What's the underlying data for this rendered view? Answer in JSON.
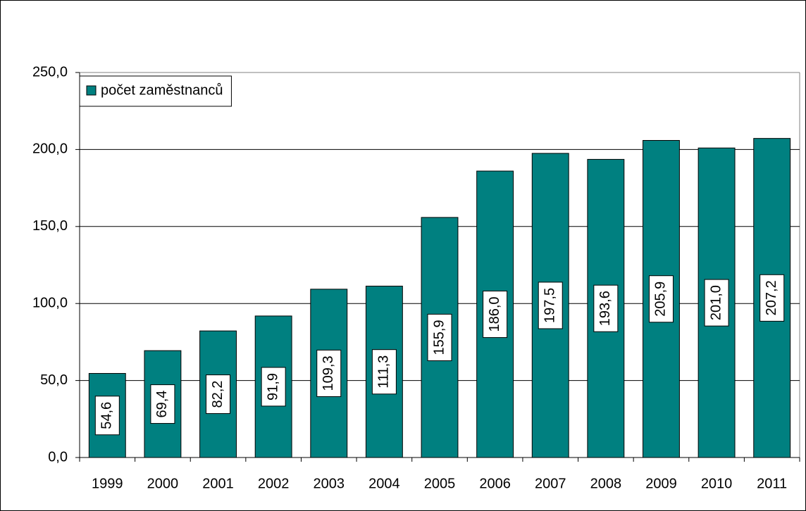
{
  "chart_data": {
    "type": "bar",
    "categories": [
      "1999",
      "2000",
      "2001",
      "2002",
      "2003",
      "2004",
      "2005",
      "2006",
      "2007",
      "2008",
      "2009",
      "2010",
      "2011"
    ],
    "series": [
      {
        "name": "počet zaměstnanců",
        "color": "#008080",
        "values": [
          54.6,
          69.4,
          82.2,
          91.9,
          109.3,
          111.3,
          155.9,
          186.0,
          197.5,
          193.6,
          205.9,
          201.0,
          207.2
        ],
        "value_labels": [
          "54,6",
          "69,4",
          "82,2",
          "91,9",
          "109,3",
          "111,3",
          "155,9",
          "186,0",
          "197,5",
          "193,6",
          "205,9",
          "201,0",
          "207,2"
        ]
      }
    ],
    "ylim": [
      0,
      250
    ],
    "yticks": [
      {
        "value": 0,
        "label": "0,0"
      },
      {
        "value": 50,
        "label": "50,0"
      },
      {
        "value": 100,
        "label": "100,0"
      },
      {
        "value": 150,
        "label": "150,0"
      },
      {
        "value": 200,
        "label": "200,0"
      },
      {
        "value": 250,
        "label": "250,0"
      }
    ],
    "grid": true,
    "legend": "top-left"
  }
}
